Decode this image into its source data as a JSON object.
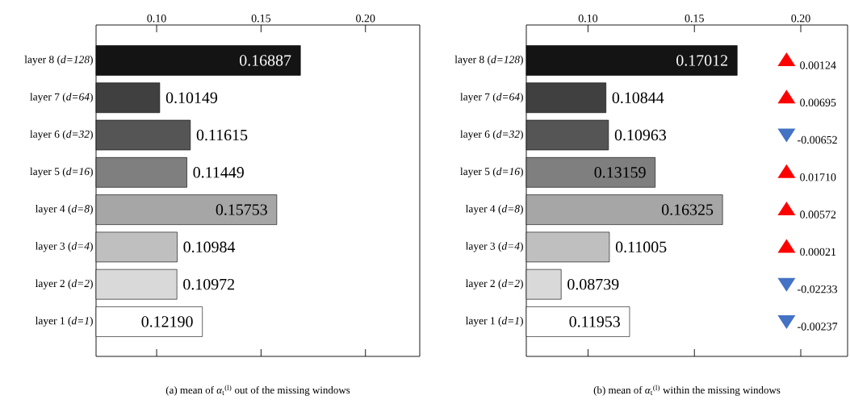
{
  "chart_data": [
    {
      "type": "bar",
      "orientation": "horizontal",
      "title": "(a) mean of *α*$_{t}$$^{(l)}$ out of the missing windows",
      "categories": [
        "layer 8 (*d=128*)",
        "layer 7 (*d=64*)",
        "layer 6 (*d=32*)",
        "layer 5 (*d=16*)",
        "layer 4 (*d=8*)",
        "layer 3 (*d=4*)",
        "layer 2 (*d=2*)",
        "layer 1 (*d=1*)"
      ],
      "values": [
        0.16887,
        0.10149,
        0.11615,
        0.11449,
        0.15753,
        0.10984,
        0.10972,
        0.1219
      ],
      "value_labels": [
        "0.16887",
        "0.10149",
        "0.11615",
        "0.11449",
        "0.15753",
        "0.10984",
        "0.10972",
        "0.12190"
      ],
      "colors": [
        "#141414",
        "#404040",
        "#555555",
        "#7f7f7f",
        "#a6a6a6",
        "#bfbfbf",
        "#d9d9d9",
        "#ffffff"
      ],
      "xlim": [
        0.071,
        0.226
      ],
      "xticks": [
        {
          "value": 0.1,
          "label": "0.10"
        },
        {
          "value": 0.15,
          "label": "0.15"
        },
        {
          "value": 0.2,
          "label": "0.20"
        }
      ]
    },
    {
      "type": "bar",
      "orientation": "horizontal",
      "title": "(b) mean of *α*$_{t}$$^{(l)}$ within the missing windows",
      "categories": [
        "layer 8 (*d=128*)",
        "layer 7 (*d=64*)",
        "layer 6 (*d=32*)",
        "layer 5 (*d=16*)",
        "layer 4 (*d=8*)",
        "layer 3 (*d=4*)",
        "layer 2 (*d=2*)",
        "layer 1 (*d=1*)"
      ],
      "values": [
        0.17012,
        0.10844,
        0.10963,
        0.13159,
        0.16325,
        0.11005,
        0.08739,
        0.11953
      ],
      "value_labels": [
        "0.17012",
        "0.10844",
        "0.10963",
        "0.13159",
        "0.16325",
        "0.11005",
        "0.08739",
        "0.11953"
      ],
      "colors": [
        "#141414",
        "#404040",
        "#555555",
        "#7f7f7f",
        "#a6a6a6",
        "#bfbfbf",
        "#d9d9d9",
        "#ffffff"
      ],
      "xlim": [
        0.071,
        0.222
      ],
      "xticks": [
        {
          "value": 0.1,
          "label": "0.10"
        },
        {
          "value": 0.15,
          "label": "0.15"
        },
        {
          "value": 0.2,
          "label": "0.20"
        }
      ],
      "annotations": [
        "0.00124",
        "0.00695",
        "-0.00652",
        "0.01710",
        "0.00572",
        "0.00021",
        "-0.02233",
        "-0.00237"
      ]
    }
  ]
}
